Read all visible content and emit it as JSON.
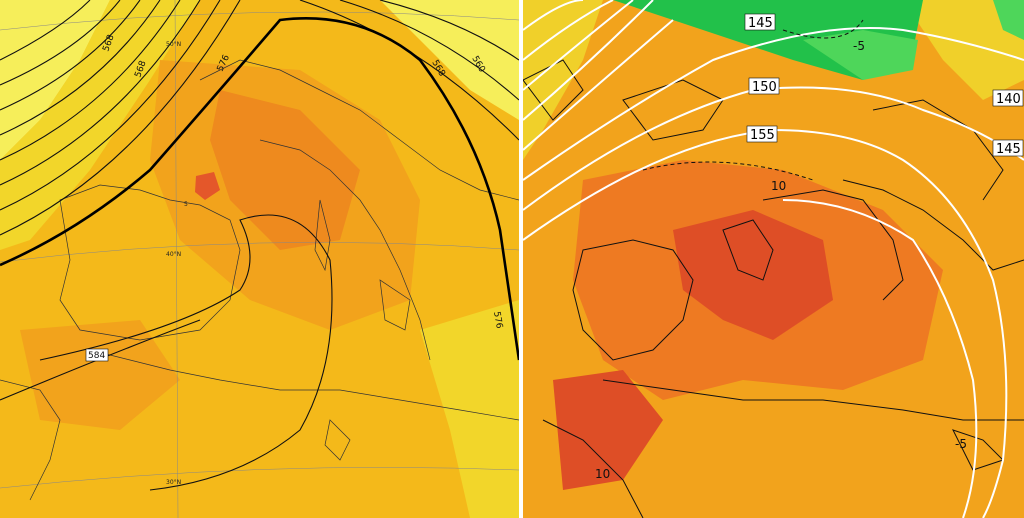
{
  "left_map": {
    "colors": {
      "fill_light": "#f6ee5a",
      "fill_yellow": "#f2d62a",
      "fill_gold": "#f4b91a",
      "fill_orange": "#f2a31c",
      "fill_deep": "#ee8a1e",
      "fill_red": "#e4572a",
      "contour": "#111111"
    },
    "contour_labels": {
      "a": "568",
      "b": "568",
      "c": "576",
      "d": "568",
      "e": "560",
      "f": "584",
      "g": "576"
    },
    "lat_labels": {
      "a": "50°N",
      "b": "40°N",
      "c": "30°N"
    },
    "small_labels": {
      "a": "5"
    }
  },
  "right_map": {
    "colors": {
      "fill_orange": "#f2a31c",
      "fill_deep": "#ee7a22",
      "fill_red": "#de4e26",
      "fill_yellow": "#f0d02a",
      "fill_green": "#22c14a",
      "fill_green2": "#4ed65a",
      "isoline": "#ffffff",
      "contour": "#111111"
    },
    "isoline_labels": {
      "a": "145",
      "b": "150",
      "c": "155",
      "d": "140",
      "e": "145"
    },
    "dashed_labels": {
      "a": "-5",
      "b": "10",
      "c": "-5",
      "d": "10"
    }
  }
}
